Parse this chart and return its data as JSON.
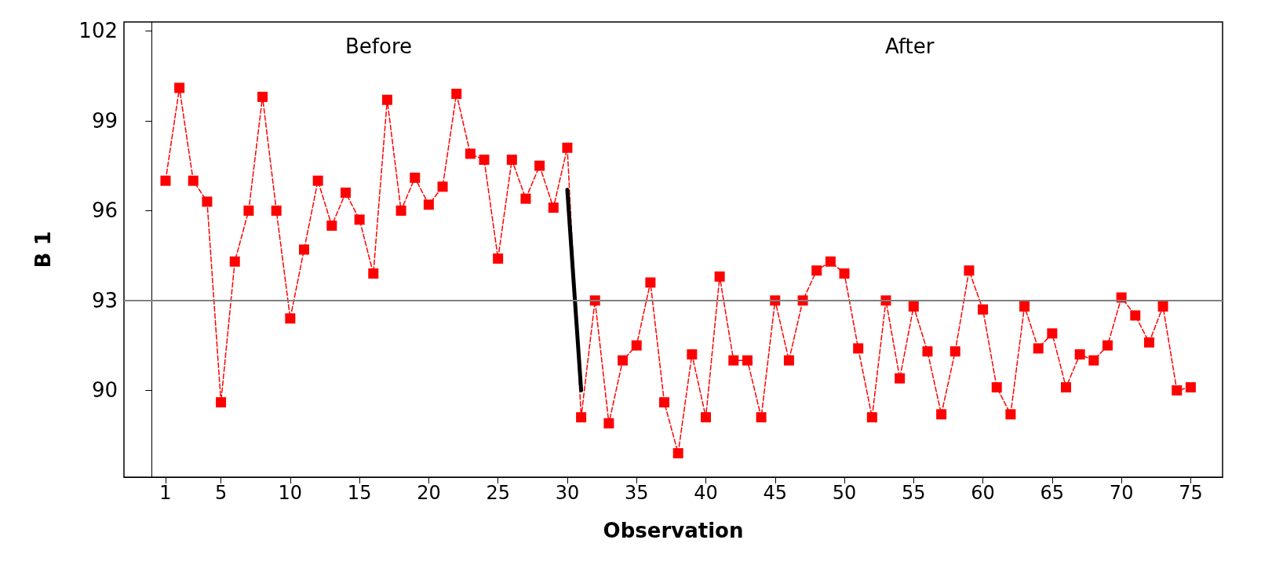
{
  "chart_data": {
    "type": "line",
    "xlabel": "Observation",
    "ylabel": "B 1",
    "x": [
      1,
      2,
      3,
      4,
      5,
      6,
      7,
      8,
      9,
      10,
      11,
      12,
      13,
      14,
      15,
      16,
      17,
      18,
      19,
      20,
      21,
      22,
      23,
      24,
      25,
      26,
      27,
      28,
      29,
      30,
      31,
      32,
      33,
      34,
      35,
      36,
      37,
      38,
      39,
      40,
      41,
      42,
      43,
      44,
      45,
      46,
      47,
      48,
      49,
      50,
      51,
      52,
      53,
      54,
      55,
      56,
      57,
      58,
      59,
      60,
      61,
      62,
      63,
      64,
      65,
      66,
      67,
      68,
      69,
      70,
      71,
      72,
      73,
      74,
      75
    ],
    "series": [
      {
        "color": "#ff0000",
        "values": [
          97.0,
          100.1,
          97.0,
          96.3,
          89.6,
          94.3,
          96.0,
          99.8,
          96.0,
          92.4,
          94.7,
          97.0,
          95.5,
          96.6,
          95.7,
          93.9,
          99.7,
          96.0,
          97.1,
          96.2,
          96.8,
          99.9,
          97.9,
          97.7,
          94.4,
          97.7,
          96.4,
          97.5,
          96.1,
          98.1,
          89.1,
          93.0,
          88.9,
          91.0,
          91.5,
          93.6,
          89.6,
          87.9,
          91.2,
          89.1,
          93.8,
          91.0,
          91.0,
          89.1,
          93.0,
          91.0,
          93.0,
          94.0,
          94.3,
          93.9,
          91.4,
          89.1,
          93.0,
          90.4,
          92.8,
          91.3,
          89.2,
          91.3,
          94.0,
          92.7,
          90.1,
          89.2,
          92.8,
          91.4,
          91.9,
          90.1,
          91.2,
          91.0,
          91.5,
          93.1,
          92.5,
          91.6,
          92.8,
          90.0,
          90.1
        ]
      },
      {
        "color": "#000000",
        "x": [
          30,
          31
        ],
        "values": [
          96.7,
          90.0
        ],
        "marker": "none",
        "line_style": "solid"
      }
    ],
    "marker": "square",
    "line_style": "dashed",
    "grid": false,
    "xlim": [
      -2,
      77.3
    ],
    "xticks": [
      1,
      5,
      10,
      15,
      20,
      25,
      30,
      35,
      40,
      45,
      50,
      55,
      60,
      65,
      70,
      75
    ],
    "ylim": [
      87.1,
      102.3
    ],
    "yticks": [
      90,
      93,
      96,
      99,
      102
    ],
    "ref_lines": [
      {
        "axis": "y",
        "value": 93,
        "color": "#808080",
        "line_style": "solid"
      }
    ],
    "annotations": [
      "Before",
      "After"
    ]
  }
}
